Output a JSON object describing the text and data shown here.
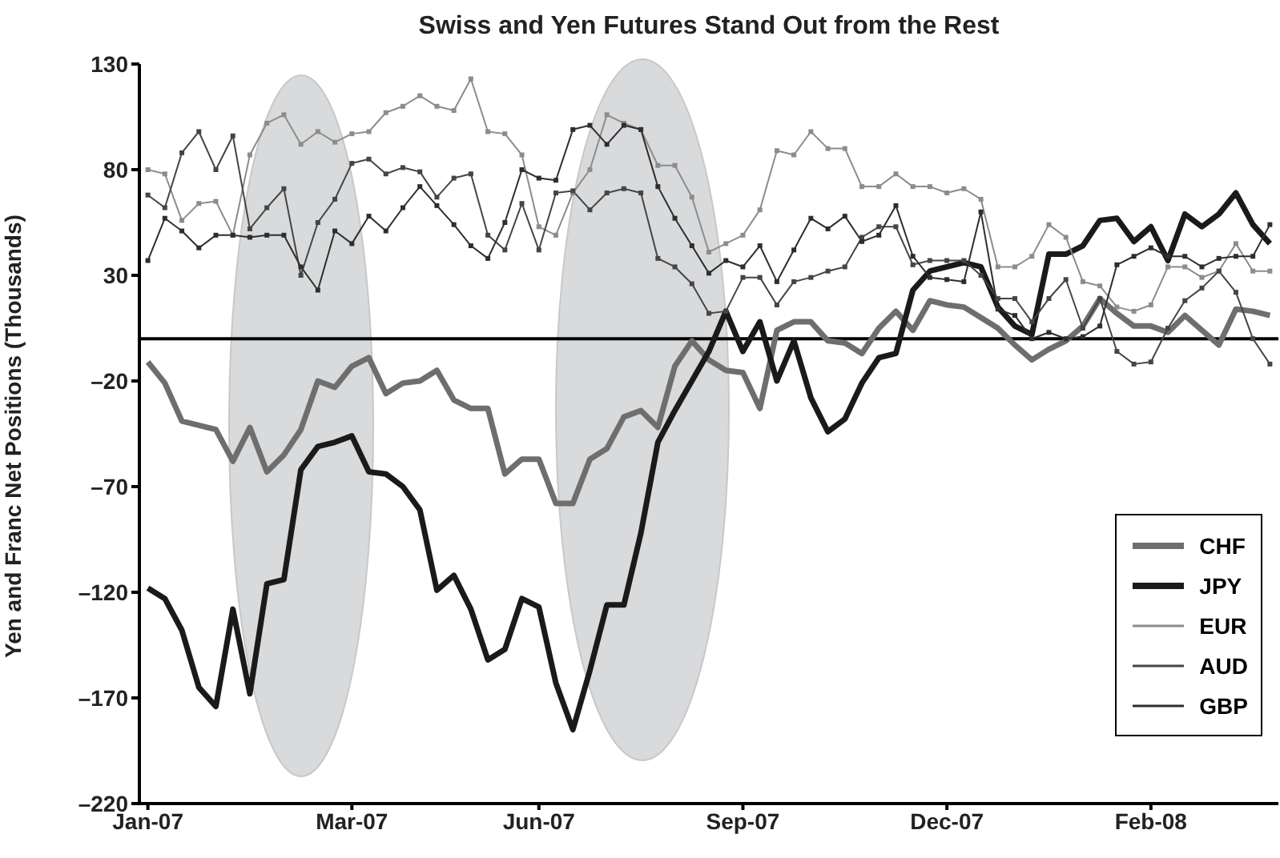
{
  "chart_data": {
    "type": "line",
    "title": "Swiss and Yen Futures Stand Out from the Rest",
    "ylabel": "Yen and Franc Net Positions (Thousands)",
    "categories": [
      "Jan-07",
      null,
      null,
      null,
      null,
      null,
      null,
      null,
      null,
      null,
      null,
      null,
      "Mar-07",
      null,
      null,
      null,
      null,
      null,
      null,
      null,
      null,
      null,
      null,
      "Jun-07",
      null,
      null,
      null,
      null,
      null,
      null,
      null,
      null,
      null,
      null,
      null,
      "Sep-07",
      null,
      null,
      null,
      null,
      null,
      null,
      null,
      null,
      null,
      null,
      null,
      "Dec-07",
      null,
      null,
      null,
      null,
      null,
      null,
      null,
      null,
      null,
      null,
      null,
      "Feb-08",
      null,
      null,
      null,
      null,
      null,
      null,
      null
    ],
    "series": [
      {
        "name": "CHF",
        "color": "#6e6e6e",
        "marker": "none",
        "values": [
          -11,
          -21,
          -39,
          -41,
          -43,
          -58,
          -42,
          -63,
          -55,
          -43,
          -20,
          -23,
          -13,
          -9,
          -26,
          -21,
          -20,
          -15,
          -29,
          -33,
          -33,
          -64,
          -57,
          -57,
          -78,
          -78,
          -57,
          -52,
          -37,
          -34,
          -42,
          -13,
          -1,
          -10,
          -15,
          -16,
          -33,
          4,
          8,
          8,
          -1,
          -2,
          -7,
          5,
          13,
          4,
          18,
          16,
          15,
          10,
          5,
          -3,
          -10,
          -5,
          -1,
          6,
          19,
          12,
          6,
          6,
          3,
          11,
          4,
          -3,
          14,
          13,
          11
        ]
      },
      {
        "name": "JPY",
        "color": "#1a1a1a",
        "marker": "none",
        "values": [
          -118,
          -123,
          -138,
          -165,
          -174,
          -128,
          -168,
          -116,
          -114,
          -62,
          -51,
          -49,
          -46,
          -63,
          -64,
          -70,
          -81,
          -119,
          -112,
          -128,
          -152,
          -147,
          -123,
          -127,
          -163,
          -185,
          -157,
          -126,
          -126,
          -92,
          -49,
          -34,
          -20,
          -6,
          13,
          -6,
          8,
          -20,
          -1,
          -28,
          -44,
          -38,
          -21,
          -9,
          -7,
          23,
          32,
          34,
          36,
          34,
          15,
          6,
          2,
          40,
          40,
          44,
          56,
          57,
          46,
          53,
          37,
          59,
          53,
          59,
          69,
          54,
          45
        ]
      },
      {
        "name": "EUR",
        "color": "#8c8c8c",
        "marker": "square",
        "values": [
          80,
          78,
          56,
          64,
          65,
          49,
          87,
          102,
          106,
          92,
          98,
          93,
          97,
          98,
          107,
          110,
          115,
          110,
          108,
          123,
          98,
          97,
          87,
          53,
          49,
          69,
          80,
          106,
          102,
          99,
          82,
          82,
          67,
          41,
          45,
          49,
          61,
          89,
          87,
          98,
          90,
          90,
          72,
          72,
          78,
          72,
          72,
          69,
          71,
          66,
          34,
          34,
          39,
          54,
          48,
          27,
          25,
          15,
          13,
          16,
          34,
          34,
          29,
          32,
          45,
          32,
          32
        ]
      },
      {
        "name": "AUD",
        "color": "#454545",
        "marker": "square",
        "values": [
          68,
          62,
          88,
          98,
          80,
          96,
          52,
          62,
          71,
          30,
          55,
          66,
          83,
          85,
          78,
          81,
          79,
          67,
          76,
          78,
          49,
          42,
          64,
          42,
          69,
          70,
          61,
          69,
          71,
          69,
          38,
          34,
          26,
          12,
          13,
          29,
          29,
          16,
          27,
          29,
          32,
          34,
          48,
          53,
          53,
          35,
          37,
          37,
          37,
          30,
          19,
          19,
          8,
          19,
          28,
          5,
          19,
          -6,
          -12,
          -11,
          5,
          18,
          24,
          32,
          22,
          0,
          -12
        ]
      },
      {
        "name": "GBP",
        "color": "#2e2e2e",
        "marker": "square",
        "values": [
          37,
          57,
          51,
          43,
          49,
          49,
          48,
          49,
          49,
          34,
          23,
          51,
          45,
          58,
          51,
          62,
          72,
          63,
          54,
          44,
          38,
          55,
          80,
          76,
          75,
          99,
          101,
          92,
          101,
          99,
          72,
          57,
          44,
          31,
          37,
          34,
          44,
          27,
          42,
          57,
          52,
          58,
          46,
          49,
          63,
          39,
          29,
          28,
          27,
          60,
          14,
          11,
          0,
          3,
          0,
          1,
          6,
          35,
          39,
          43,
          39,
          39,
          34,
          38,
          39,
          39,
          54
        ]
      }
    ],
    "ylim": [
      -220,
      130
    ],
    "yticks": [
      130,
      80,
      30,
      {
        "value": -20,
        "label": "–20"
      },
      {
        "value": -70,
        "label": "–70"
      },
      {
        "value": -120,
        "label": "–120"
      },
      {
        "value": -170,
        "label": "–170"
      },
      {
        "value": -220,
        "label": "–220"
      }
    ],
    "ref_lines": [
      {
        "axis": "y",
        "value": 0,
        "color": "#000000"
      }
    ],
    "grid": false,
    "legend": "bottom right"
  }
}
